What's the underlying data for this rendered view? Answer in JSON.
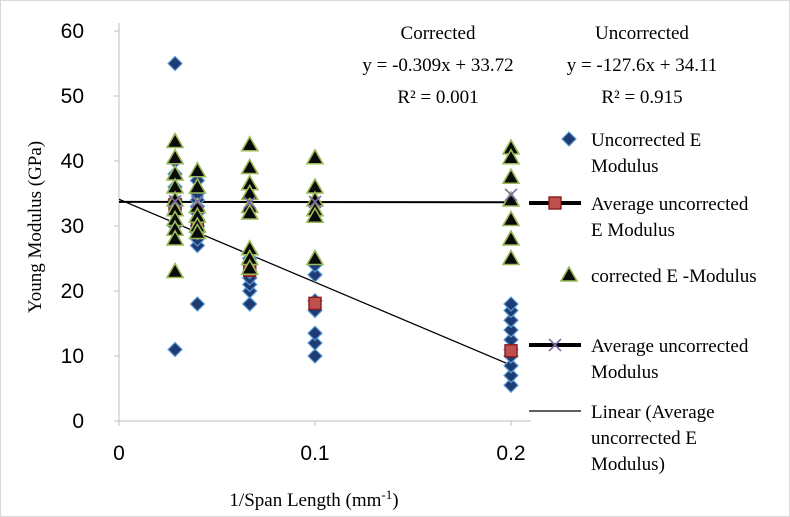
{
  "chart_data": {
    "type": "scatter",
    "xlabel": "1/Span Length (mm",
    "xlabel_sup": "-1",
    "xlabel_tail": ")",
    "ylabel": "Young Modulus (GPa)",
    "xlim": [
      0,
      0.2
    ],
    "ylim": [
      0,
      60
    ],
    "xticks": [
      0,
      0.1,
      0.2
    ],
    "yticks": [
      0,
      10,
      20,
      30,
      40,
      50,
      60
    ],
    "grid": false,
    "legend_position": "right",
    "series": [
      {
        "name": "Uncorrected E Modulus",
        "marker": "diamond",
        "color": "#1f3b73",
        "edge": "#5b9bd5",
        "points": [
          [
            0.0286,
            55
          ],
          [
            0.0286,
            11
          ],
          [
            0.0286,
            40
          ],
          [
            0.0286,
            38
          ],
          [
            0.0286,
            36
          ],
          [
            0.0286,
            34
          ],
          [
            0.0286,
            33
          ],
          [
            0.0286,
            32
          ],
          [
            0.0286,
            30
          ],
          [
            0.04,
            18
          ],
          [
            0.04,
            27
          ],
          [
            0.04,
            28
          ],
          [
            0.04,
            29
          ],
          [
            0.04,
            30
          ],
          [
            0.04,
            31
          ],
          [
            0.04,
            32
          ],
          [
            0.04,
            33
          ],
          [
            0.04,
            34
          ],
          [
            0.04,
            35
          ],
          [
            0.04,
            37
          ],
          [
            0.0667,
            18
          ],
          [
            0.0667,
            20
          ],
          [
            0.0667,
            21
          ],
          [
            0.0667,
            22
          ],
          [
            0.0667,
            23
          ],
          [
            0.0667,
            24
          ],
          [
            0.0667,
            25
          ],
          [
            0.0667,
            26
          ],
          [
            0.1,
            10
          ],
          [
            0.1,
            12
          ],
          [
            0.1,
            13.5
          ],
          [
            0.1,
            17
          ],
          [
            0.1,
            18.5
          ],
          [
            0.1,
            22.5
          ],
          [
            0.1,
            24
          ],
          [
            0.2,
            5.5
          ],
          [
            0.2,
            7
          ],
          [
            0.2,
            8.5
          ],
          [
            0.2,
            10
          ],
          [
            0.2,
            11
          ],
          [
            0.2,
            12.5
          ],
          [
            0.2,
            14
          ],
          [
            0.2,
            15.5
          ],
          [
            0.2,
            17
          ],
          [
            0.2,
            18
          ]
        ]
      },
      {
        "name": "Average uncorrected E Modulus",
        "marker": "square",
        "color": "#c0504d",
        "edge": "#8b1a1a",
        "points": [
          [
            0.0286,
            33.3
          ],
          [
            0.04,
            30.1
          ],
          [
            0.0667,
            23.2
          ],
          [
            0.1,
            18.1
          ],
          [
            0.2,
            10.8
          ]
        ]
      },
      {
        "name": "corrected E -Modulus",
        "marker": "triangle",
        "color": "#0a0a0a",
        "edge": "#9bbb59",
        "points": [
          [
            0.0286,
            43
          ],
          [
            0.0286,
            40.5
          ],
          [
            0.0286,
            38
          ],
          [
            0.0286,
            36
          ],
          [
            0.0286,
            34
          ],
          [
            0.0286,
            32.5
          ],
          [
            0.0286,
            31
          ],
          [
            0.0286,
            29.5
          ],
          [
            0.0286,
            28
          ],
          [
            0.0286,
            23
          ],
          [
            0.04,
            38.5
          ],
          [
            0.04,
            36
          ],
          [
            0.04,
            33
          ],
          [
            0.04,
            31.5
          ],
          [
            0.04,
            30
          ],
          [
            0.04,
            29
          ],
          [
            0.0667,
            42.5
          ],
          [
            0.0667,
            39
          ],
          [
            0.0667,
            36.5
          ],
          [
            0.0667,
            35
          ],
          [
            0.0667,
            33
          ],
          [
            0.0667,
            32
          ],
          [
            0.0667,
            26.5
          ],
          [
            0.0667,
            25
          ],
          [
            0.0667,
            23.5
          ],
          [
            0.1,
            40.5
          ],
          [
            0.1,
            36
          ],
          [
            0.1,
            34
          ],
          [
            0.1,
            32.5
          ],
          [
            0.1,
            31.5
          ],
          [
            0.1,
            25
          ],
          [
            0.2,
            42
          ],
          [
            0.2,
            40.5
          ],
          [
            0.2,
            37.5
          ],
          [
            0.2,
            34
          ],
          [
            0.2,
            31
          ],
          [
            0.2,
            28
          ],
          [
            0.2,
            25
          ]
        ]
      },
      {
        "name": "Average uncorrected Modulus",
        "marker": "x",
        "color": "#7f6aa7",
        "points": [
          [
            0.0286,
            33.8
          ],
          [
            0.04,
            33.7
          ],
          [
            0.0667,
            33.6
          ],
          [
            0.1,
            33.7
          ],
          [
            0.2,
            34.8
          ]
        ]
      }
    ],
    "trendlines": [
      {
        "name": "Linear (Average uncorrected E Modulus)",
        "slope": -127.6,
        "intercept": 34.11,
        "x_range": [
          0,
          0.2
        ],
        "color": "#000000",
        "width": 1.3
      },
      {
        "slope": -0.309,
        "intercept": 33.72,
        "x_range": [
          0,
          0.2
        ],
        "color": "#000000",
        "width": 2
      }
    ],
    "annotations": [
      {
        "title": "Corrected",
        "equation": "y = -0.309x + 33.72",
        "r2": "R² = 0.001"
      },
      {
        "title": "Uncorrected",
        "equation": "y = -127.6x + 34.11",
        "r2": "R² = 0.915"
      }
    ],
    "legend": [
      {
        "key": "diamond",
        "lines": [
          "Uncorrected E",
          "Modulus"
        ]
      },
      {
        "key": "line-square",
        "lines": [
          "Average uncorrected",
          "E Modulus"
        ]
      },
      {
        "key": "triangle",
        "lines": [
          "corrected E -Modulus"
        ]
      },
      {
        "key": "line-x",
        "lines": [
          "Average uncorrected",
          "Modulus"
        ]
      },
      {
        "key": "thin-line",
        "lines": [
          "Linear (Average",
          "uncorrected E",
          "Modulus)"
        ]
      }
    ]
  }
}
